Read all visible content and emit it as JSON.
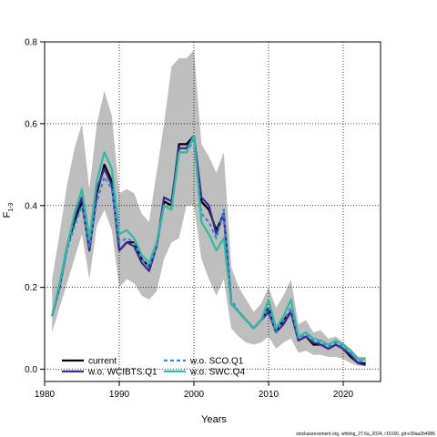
{
  "chart_data": {
    "type": "line",
    "xlabel": "Years",
    "ylabel_main": "F",
    "ylabel_sub": "1-3",
    "xlim": [
      1980,
      2025
    ],
    "ylim": [
      -0.03,
      0.8
    ],
    "xticks": [
      1980,
      1990,
      2000,
      2010,
      2020
    ],
    "yticks": [
      0.0,
      0.2,
      0.4,
      0.6,
      0.8
    ],
    "ytick_labels": [
      "0.0",
      "0.2",
      "0.4",
      "0.6",
      "0.8"
    ],
    "grid": true,
    "legend_position": "bottom-left",
    "x": [
      1981,
      1982,
      1983,
      1984,
      1985,
      1986,
      1987,
      1988,
      1989,
      1990,
      1991,
      1992,
      1993,
      1994,
      1995,
      1996,
      1997,
      1998,
      1999,
      2000,
      2001,
      2002,
      2003,
      2004,
      2005,
      2006,
      2007,
      2008,
      2009,
      2010,
      2011,
      2012,
      2013,
      2014,
      2015,
      2016,
      2017,
      2018,
      2019,
      2020,
      2021,
      2022,
      2023
    ],
    "band": {
      "name": "confidence interval",
      "color": "#bebebe",
      "upper": [
        0.22,
        0.33,
        0.45,
        0.54,
        0.6,
        0.44,
        0.6,
        0.68,
        0.62,
        0.43,
        0.44,
        0.43,
        0.38,
        0.36,
        0.48,
        0.6,
        0.74,
        0.76,
        0.76,
        0.78,
        0.55,
        0.52,
        0.48,
        0.53,
        0.25,
        0.2,
        0.17,
        0.14,
        0.16,
        0.2,
        0.15,
        0.18,
        0.22,
        0.11,
        0.12,
        0.09,
        0.095,
        0.075,
        0.08,
        0.065,
        0.05,
        0.03,
        0.03
      ],
      "lower": [
        0.09,
        0.15,
        0.21,
        0.27,
        0.33,
        0.22,
        0.35,
        0.39,
        0.34,
        0.2,
        0.22,
        0.21,
        0.18,
        0.17,
        0.19,
        0.27,
        0.31,
        0.32,
        0.4,
        0.4,
        0.27,
        0.22,
        0.18,
        0.22,
        0.1,
        0.08,
        0.065,
        0.06,
        0.065,
        0.08,
        0.05,
        0.065,
        0.075,
        0.04,
        0.045,
        0.035,
        0.035,
        0.03,
        0.03,
        0.025,
        0.015,
        0.008,
        0.008
      ]
    },
    "series": [
      {
        "name": "current",
        "color": "#000000",
        "dash": "",
        "values": [
          0.13,
          0.2,
          0.3,
          0.36,
          0.41,
          0.29,
          0.43,
          0.5,
          0.46,
          0.29,
          0.31,
          0.31,
          0.27,
          0.25,
          0.3,
          0.41,
          0.4,
          0.55,
          0.55,
          0.57,
          0.41,
          0.39,
          0.34,
          0.38,
          0.16,
          0.14,
          0.12,
          0.1,
          0.12,
          0.15,
          0.09,
          0.12,
          0.14,
          0.07,
          0.08,
          0.06,
          0.06,
          0.05,
          0.06,
          0.05,
          0.03,
          0.015,
          0.014
        ]
      },
      {
        "name": "w.o. WCIBTS.Q1",
        "color": "#3b2a8c",
        "dash": "",
        "values": [
          0.13,
          0.2,
          0.3,
          0.37,
          0.42,
          0.29,
          0.44,
          0.49,
          0.45,
          0.29,
          0.31,
          0.3,
          0.26,
          0.24,
          0.3,
          0.42,
          0.41,
          0.54,
          0.54,
          0.57,
          0.42,
          0.4,
          0.33,
          0.38,
          0.16,
          0.14,
          0.12,
          0.1,
          0.12,
          0.14,
          0.09,
          0.11,
          0.14,
          0.07,
          0.08,
          0.065,
          0.06,
          0.05,
          0.06,
          0.05,
          0.035,
          0.015,
          0.01
        ]
      },
      {
        "name": "w.o. SCO.Q1",
        "color": "#3a86d6",
        "dash": "4,3",
        "values": [
          0.13,
          0.2,
          0.29,
          0.35,
          0.4,
          0.3,
          0.41,
          0.47,
          0.44,
          0.31,
          0.32,
          0.31,
          0.27,
          0.25,
          0.3,
          0.4,
          0.39,
          0.53,
          0.53,
          0.56,
          0.38,
          0.36,
          0.32,
          0.39,
          0.17,
          0.14,
          0.12,
          0.1,
          0.12,
          0.15,
          0.09,
          0.12,
          0.15,
          0.075,
          0.085,
          0.07,
          0.065,
          0.055,
          0.065,
          0.055,
          0.04,
          0.02,
          0.018
        ]
      },
      {
        "name": "w.o. SWC.Q4",
        "color": "#35b7a3",
        "dash": "",
        "values": [
          0.13,
          0.21,
          0.3,
          0.38,
          0.44,
          0.32,
          0.46,
          0.53,
          0.49,
          0.33,
          0.34,
          0.32,
          0.28,
          0.26,
          0.31,
          0.4,
          0.39,
          0.53,
          0.53,
          0.57,
          0.36,
          0.33,
          0.29,
          0.32,
          0.16,
          0.14,
          0.12,
          0.1,
          0.12,
          0.17,
          0.1,
          0.13,
          0.17,
          0.08,
          0.09,
          0.075,
          0.07,
          0.06,
          0.07,
          0.06,
          0.045,
          0.025,
          0.025
        ]
      }
    ],
    "footnote": "stockassessment.org, whiting_27.6a_2024, r16160, git:e39aa2b4986"
  }
}
